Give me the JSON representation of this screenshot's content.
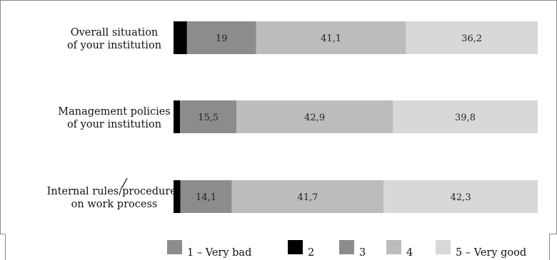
{
  "chart_data": {
    "type": "bar",
    "orientation": "horizontal",
    "stacked": true,
    "categories": [
      [
        "Overall situation",
        "of your institution"
      ],
      [
        "Management policies",
        "of your institution"
      ],
      [
        "Internal rules/procedures",
        "on work process"
      ]
    ],
    "series": [
      {
        "name": "1 – Very bad",
        "values": [
          0,
          0,
          0
        ],
        "color": "#8c8c8c",
        "labels": [
          "",
          "",
          ""
        ]
      },
      {
        "name": "2",
        "values": [
          3.7,
          1.8,
          1.9
        ],
        "color": "#000000",
        "labels": [
          "",
          "",
          ""
        ]
      },
      {
        "name": "3",
        "values": [
          19,
          15.5,
          14.1
        ],
        "color": "#8c8c8c",
        "labels": [
          "19",
          "15,5",
          "14,1"
        ]
      },
      {
        "name": "4",
        "values": [
          41.1,
          42.9,
          41.7
        ],
        "color": "#bcbcbc",
        "labels": [
          "41,1",
          "42,9",
          "41,7"
        ]
      },
      {
        "name": "5 – Very good",
        "values": [
          36.2,
          39.8,
          42.3
        ],
        "color": "#d8d8d8",
        "labels": [
          "36,2",
          "39,8",
          "42,3"
        ]
      }
    ],
    "xlim": [
      0,
      100
    ],
    "grid": false,
    "legend_position": "bottom"
  }
}
